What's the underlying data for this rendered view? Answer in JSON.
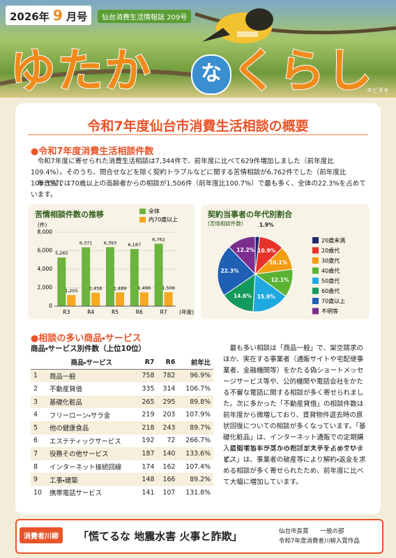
{
  "header": {
    "year": "2026年",
    "month": "9",
    "month_suffix": "月号",
    "publisher": "仙台消費生活情報誌 209号",
    "title_1": "ゆたか",
    "title_2": "な",
    "title_3": "くらし",
    "photo_caption": "キビタキ"
  },
  "article": {
    "title": "令和7年度仙台市消費生活相談の概要",
    "section_1": "●令和7年度消費生活相談件数",
    "paragraphs": [
      "令和7年度に寄せられた消費生活相談は7,344件で、前年度に比べて629件増加しました（前年度比109.4%）。そのうち、問合せなどを除く契約トラブルなどに関する苦情相談が6,762件でした（前年度比109.3%）。",
      "年代別では70歳以上の高齢者からの相談が1,506件（前年度比100.7%）で最も多く、全体の22.3%を占めています。"
    ],
    "section_2": "●相談の多い商品・サービス",
    "right_paragraphs": [
      "最も多い相談は「商品一般」で、架空請求のほか、実在する事業者（通販サイトや宅配便事業者、金融機関等）をかたる偽ショートメッセージサービス等や、公的機関や電話会社をかたる不審な電話に関する相談が多く寄せられました。次に多かった「不動産貸借」の相談件数は前年度から微増しており、賃貸物件退去時の原状回復についての相談が多くなっています。「基礎化粧品」は、インターネット通販での定期購入に関するトラブルの相談が大半を占めています。",
      "最も増加率が高かった「エステティックサービス」は、事業者の破産等により解約・返金を求める相談が多く寄せられたため、前年度に比べて大幅に増加しています。"
    ]
  },
  "chart_data": [
    {
      "type": "bar",
      "title": "苦情相談件数の推移",
      "y_unit": "(件)",
      "x_label": "(年度)",
      "categories": [
        "R3",
        "R4",
        "R5",
        "R6",
        "R7"
      ],
      "series": [
        {
          "name": "全体",
          "color": "#6db33f",
          "values": [
            5265,
            6371,
            6393,
            6187,
            6762
          ],
          "value_labels": [
            "5,265",
            "6,371",
            "6,393",
            "6,187",
            "6,762"
          ]
        },
        {
          "name": "内70歳以上",
          "color": "#f6a81e",
          "values": [
            1205,
            1456,
            1489,
            1496,
            1506
          ],
          "value_labels": [
            "1,205",
            "1,456",
            "1,489",
            "1,496",
            "1,506"
          ]
        }
      ],
      "ylim": [
        0,
        8000
      ],
      "yticks": [
        0,
        {
          "value": 2000,
          "label": "2,000"
        },
        {
          "value": 4000,
          "label": "4,000"
        },
        {
          "value": 6000,
          "label": "6,000"
        },
        {
          "value": 8000,
          "label": "8,000"
        }
      ],
      "grid": true
    },
    {
      "type": "pie",
      "title": "契約当事者の年代別割合",
      "subtitle": "(苦情相談件数)",
      "categories": [
        "20歳未満",
        "20歳代",
        "30歳代",
        "40歳代",
        "50歳代",
        "60歳代",
        "70歳以上",
        "不明等"
      ],
      "values": [
        1.9,
        10.9,
        10.1,
        12.1,
        15.9,
        14.6,
        22.3,
        12.2
      ],
      "value_labels": [
        "1.9%",
        "10.9%",
        "10.1%",
        "12.1%",
        "15.9%",
        "14.6%",
        "22.3%",
        "12.2%"
      ],
      "colors": [
        "#1d2a6b",
        "#e8332a",
        "#f39c12",
        "#5bb333",
        "#1fa9e1",
        "#139a5a",
        "#1f5fb4",
        "#7a2f8e"
      ]
    }
  ],
  "table": {
    "title": "商品・サービス別件数（上位10位）",
    "columns": [
      "商品・サービス",
      "R7",
      "R6",
      "前年比"
    ],
    "rows": [
      [
        1,
        "商品一般",
        758,
        782,
        "96.9%"
      ],
      [
        2,
        "不動産貸借",
        335,
        314,
        "106.7%"
      ],
      [
        3,
        "基礎化粧品",
        265,
        295,
        "89.8%"
      ],
      [
        4,
        "フリーローン・サラ金",
        219,
        203,
        "107.9%"
      ],
      [
        5,
        "他の健康食品",
        218,
        243,
        "89.7%"
      ],
      [
        6,
        "エステティックサービス",
        192,
        72,
        "266.7%"
      ],
      [
        7,
        "役務その他サービス",
        187,
        140,
        "133.6%"
      ],
      [
        8,
        "インターネット接続回線",
        174,
        162,
        "107.4%"
      ],
      [
        9,
        "工事・建築",
        148,
        166,
        "89.2%"
      ],
      [
        10,
        "携帯電話サービス",
        141,
        107,
        "131.8%"
      ]
    ]
  },
  "footer": {
    "label": "消費者川柳",
    "senryu": "「慌てるな 地震水害 火事と詐欺」",
    "award": "仙台市長賞　　一般の部",
    "note": "令和7年度消費者川柳入賞作品"
  }
}
